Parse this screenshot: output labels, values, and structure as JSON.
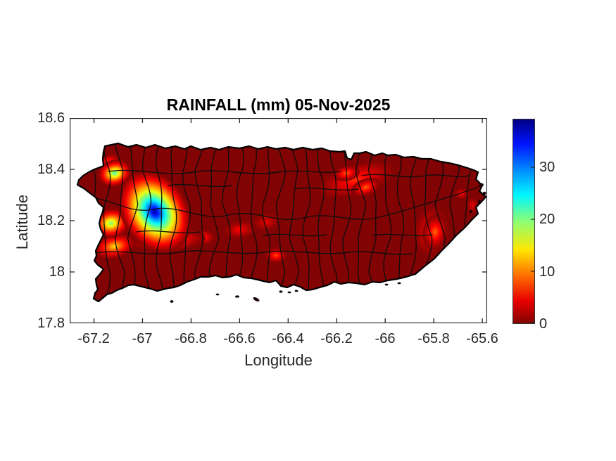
{
  "figure": {
    "title": "RAINFALL (mm) 05-Nov-2025",
    "x_axis": {
      "label": "Longitude",
      "ticks": [
        "-67.2",
        "-67",
        "-66.8",
        "-66.6",
        "-66.4",
        "-66.2",
        "-66",
        "-65.8",
        "-65.6"
      ]
    },
    "y_axis": {
      "label": "Latitude",
      "ticks": [
        "18.6",
        "18.4",
        "18.2",
        "18",
        "17.8"
      ]
    },
    "colorbar": {
      "tick_labels": [
        "0",
        "10",
        "20",
        "30"
      ]
    }
  },
  "colors": {
    "background": "#ffffff",
    "zero_rain_land": "#820303",
    "coastline": "#000000",
    "municipal_border": "#0d0d0d",
    "axis_text": "#262626",
    "jet_reversed_anchors": [
      "#820303",
      "#ff0000",
      "#ff7a00",
      "#ffff00",
      "#7dff7d",
      "#00ffff",
      "#0080ff",
      "#0000ff",
      "#00007f"
    ]
  },
  "chart_data": {
    "type": "heatmap",
    "title": "RAINFALL (mm) 05-Nov-2025",
    "xlabel": "Longitude",
    "ylabel": "Latitude",
    "region": "Puerto Rico with municipal boundaries",
    "xlim": [
      -67.3,
      -65.58
    ],
    "ylim": [
      17.8,
      18.6
    ],
    "x_ticks": [
      -67.2,
      -67,
      -66.8,
      -66.6,
      -66.4,
      -66.2,
      -66,
      -65.8,
      -65.6
    ],
    "y_ticks": [
      17.8,
      18,
      18.2,
      18.4,
      18.6
    ],
    "grid": false,
    "colormap": "jet reversed (0 = dark red, max = dark blue)",
    "colorbar_range": [
      0,
      39
    ],
    "colorbar_ticks": [
      0,
      10,
      20,
      30
    ],
    "background_value_mm": 0,
    "hotspots": [
      {
        "lon": -66.95,
        "lat": 18.235,
        "peak_mm": 38,
        "rx_deg": 0.135,
        "ry_deg": 0.17,
        "rot_deg": -32,
        "note": "intense maximum, dark-blue core (Utuado/Adjuntas area)"
      },
      {
        "lon": -67.115,
        "lat": 18.385,
        "peak_mm": 22,
        "rx_deg": 0.07,
        "ry_deg": 0.052,
        "rot_deg": -15,
        "note": "green spot, northwest"
      },
      {
        "lon": -67.13,
        "lat": 18.19,
        "peak_mm": 20,
        "rx_deg": 0.08,
        "ry_deg": 0.058,
        "rot_deg": -10,
        "note": "green-yellow spot, west"
      },
      {
        "lon": -67.115,
        "lat": 18.1,
        "peak_mm": 14,
        "rx_deg": 0.088,
        "ry_deg": 0.048,
        "rot_deg": -12,
        "note": "yellow area, southwest"
      },
      {
        "lon": -66.99,
        "lat": 18.13,
        "peak_mm": 12,
        "rx_deg": 0.042,
        "ry_deg": 0.027,
        "rot_deg": 0,
        "note": "yellow kernel on ridge"
      },
      {
        "lon": -66.9,
        "lat": 18.125,
        "peak_mm": 10,
        "rx_deg": 0.16,
        "ry_deg": 0.045,
        "rot_deg": -3,
        "note": "yellow-orange ridge along cordillera"
      },
      {
        "lon": -66.83,
        "lat": 18.12,
        "peak_mm": 9,
        "rx_deg": 0.052,
        "ry_deg": 0.03,
        "rot_deg": 0,
        "note": "orange kernel on ridge"
      },
      {
        "lon": -66.75,
        "lat": 18.135,
        "peak_mm": 7,
        "rx_deg": 0.05,
        "ry_deg": 0.03,
        "rot_deg": 0,
        "note": "orange-red kernel"
      },
      {
        "lon": -66.6,
        "lat": 18.165,
        "peak_mm": 5,
        "rx_deg": 0.07,
        "ry_deg": 0.036,
        "rot_deg": -8,
        "note": "faint red enhancement"
      },
      {
        "lon": -66.49,
        "lat": 18.195,
        "peak_mm": 4,
        "rx_deg": 0.06,
        "ry_deg": 0.036,
        "rot_deg": -10,
        "note": "faint red enhancement"
      },
      {
        "lon": -66.45,
        "lat": 18.065,
        "peak_mm": 8,
        "rx_deg": 0.046,
        "ry_deg": 0.031,
        "rot_deg": 0,
        "note": "small orange spot, south-central"
      },
      {
        "lon": -66.12,
        "lat": 18.36,
        "peak_mm": 7,
        "rx_deg": 0.17,
        "ry_deg": 0.062,
        "rot_deg": -16,
        "note": "orange-red band, north-central"
      },
      {
        "lon": -66.16,
        "lat": 18.385,
        "peak_mm": 9,
        "rx_deg": 0.055,
        "ry_deg": 0.03,
        "rot_deg": -10,
        "note": "bright orange core of north band"
      },
      {
        "lon": -66.08,
        "lat": 18.33,
        "peak_mm": 9,
        "rx_deg": 0.062,
        "ry_deg": 0.033,
        "rot_deg": -20,
        "note": "second orange core of north band"
      },
      {
        "lon": -65.81,
        "lat": 18.16,
        "peak_mm": 6,
        "rx_deg": 0.075,
        "ry_deg": 0.1,
        "rot_deg": 8,
        "note": "orange patch, southeast coast"
      },
      {
        "lon": -65.795,
        "lat": 18.155,
        "peak_mm": 9,
        "rx_deg": 0.05,
        "ry_deg": 0.07,
        "rot_deg": 8,
        "note": "bright core of southeast patch"
      },
      {
        "lon": -65.685,
        "lat": 18.305,
        "peak_mm": 5,
        "rx_deg": 0.032,
        "ry_deg": 0.022,
        "rot_deg": 0,
        "note": "small spot near Fajardo"
      },
      {
        "lon": -65.64,
        "lat": 18.26,
        "peak_mm": 4,
        "rx_deg": 0.027,
        "ry_deg": 0.035,
        "rot_deg": 0,
        "note": "faint spot, east coast"
      },
      {
        "lon": -67.14,
        "lat": 18.43,
        "peak_mm": 7,
        "rx_deg": 0.052,
        "ry_deg": 0.03,
        "rot_deg": -20,
        "note": "orange fringe, northwest coast"
      }
    ]
  }
}
